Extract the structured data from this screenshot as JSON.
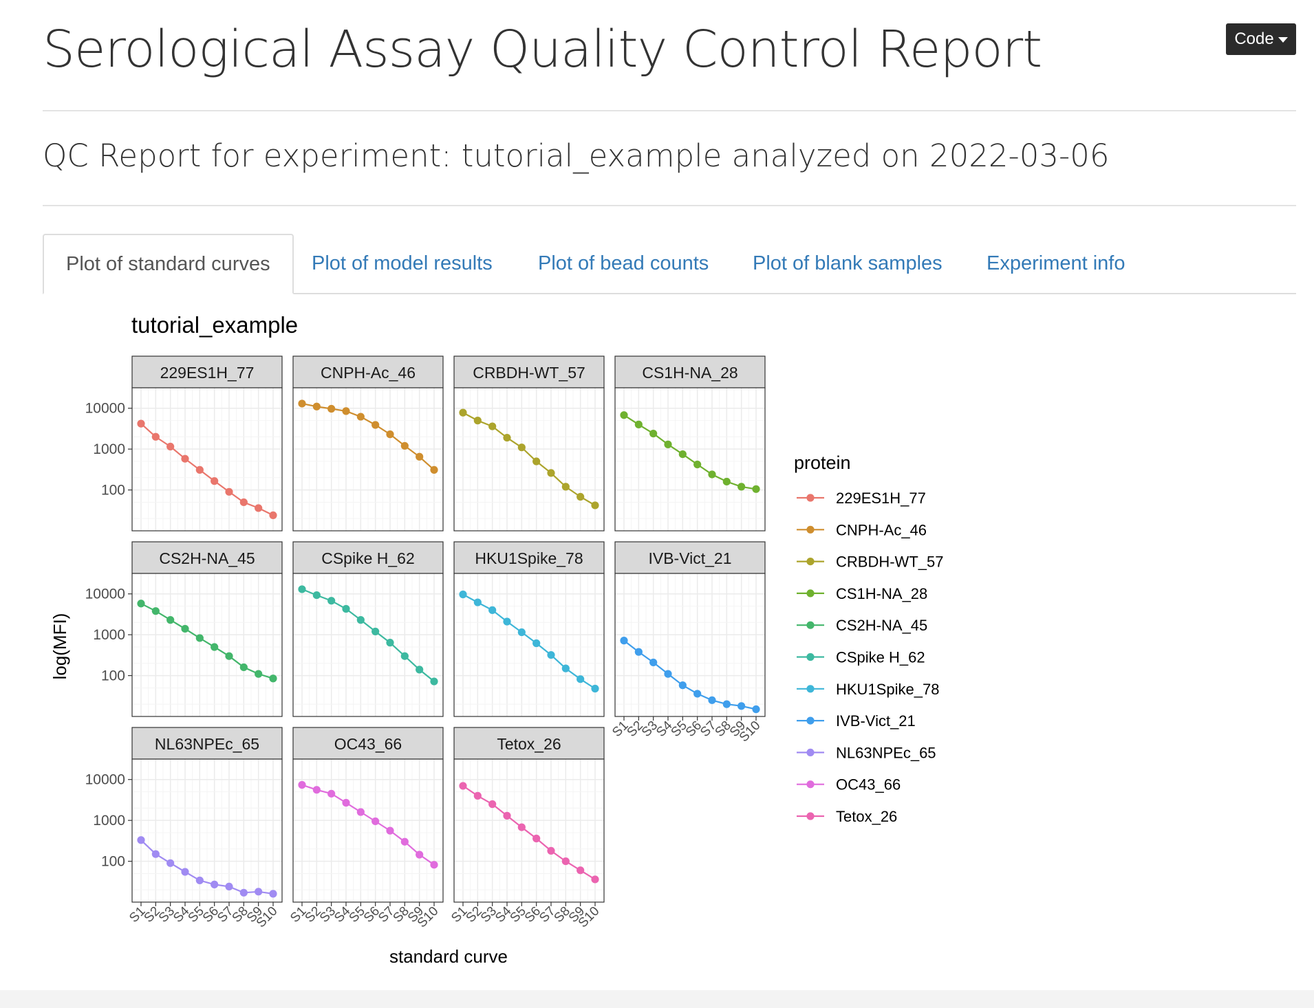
{
  "header": {
    "title": "Serological Assay Quality Control Report",
    "code_button_label": "Code",
    "subtitle": "QC Report for experiment: tutorial_example analyzed on 2022-03-06"
  },
  "tabs": [
    {
      "label": "Plot of standard curves",
      "active": true
    },
    {
      "label": "Plot of model results",
      "active": false
    },
    {
      "label": "Plot of bead counts",
      "active": false
    },
    {
      "label": "Plot of blank samples",
      "active": false
    },
    {
      "label": "Experiment info",
      "active": false
    }
  ],
  "chart_data": {
    "type": "line",
    "title": "tutorial_example",
    "xlabel": "standard curve",
    "ylabel": "log(MFI)",
    "y_scale": "log10",
    "yticks": [
      100,
      1000,
      10000
    ],
    "categories": [
      "S1",
      "S2",
      "S3",
      "S4",
      "S5",
      "S6",
      "S7",
      "S8",
      "S9",
      "S10"
    ],
    "legend_title": "protein",
    "legend_position": "right",
    "grid": true,
    "facets": [
      {
        "name": "229ES1H_77",
        "color": "#E9766C",
        "values": [
          4200,
          2000,
          1150,
          580,
          310,
          165,
          90,
          50,
          36,
          24
        ]
      },
      {
        "name": "CNPH-Ac_46",
        "color": "#CF8E2E",
        "values": [
          13000,
          11000,
          9700,
          8500,
          6200,
          3900,
          2300,
          1200,
          650,
          310
        ]
      },
      {
        "name": "CRBDH-WT_57",
        "color": "#ACA42C",
        "values": [
          7800,
          5000,
          3600,
          1900,
          1100,
          500,
          260,
          120,
          68,
          42
        ]
      },
      {
        "name": "CS1H-NA_28",
        "color": "#6FB12F",
        "values": [
          6800,
          4000,
          2400,
          1300,
          750,
          420,
          240,
          160,
          120,
          105
        ]
      },
      {
        "name": "CS2H-NA_45",
        "color": "#43B66B",
        "values": [
          5800,
          3800,
          2300,
          1400,
          830,
          500,
          300,
          160,
          110,
          85
        ]
      },
      {
        "name": "CSpike H_62",
        "color": "#3DB9A0",
        "values": [
          13000,
          9300,
          6800,
          4300,
          2300,
          1200,
          640,
          300,
          140,
          72
        ]
      },
      {
        "name": "HKU1Spike_78",
        "color": "#3EB6D8",
        "values": [
          9700,
          6200,
          4000,
          2100,
          1150,
          620,
          320,
          150,
          82,
          48
        ]
      },
      {
        "name": "IVB-Vict_21",
        "color": "#3F9EEC",
        "values": [
          720,
          380,
          210,
          110,
          58,
          36,
          25,
          20,
          18,
          15
        ]
      },
      {
        "name": "NL63NPEc_65",
        "color": "#A08BF2",
        "values": [
          330,
          150,
          90,
          55,
          34,
          27,
          24,
          17,
          18,
          16
        ]
      },
      {
        "name": "OC43_66",
        "color": "#E06CDD",
        "values": [
          7400,
          5600,
          4500,
          2700,
          1600,
          950,
          560,
          300,
          145,
          82
        ]
      },
      {
        "name": "Tetox_26",
        "color": "#EB64B0",
        "values": [
          7000,
          4000,
          2500,
          1300,
          680,
          360,
          180,
          100,
          60,
          36
        ]
      }
    ]
  }
}
